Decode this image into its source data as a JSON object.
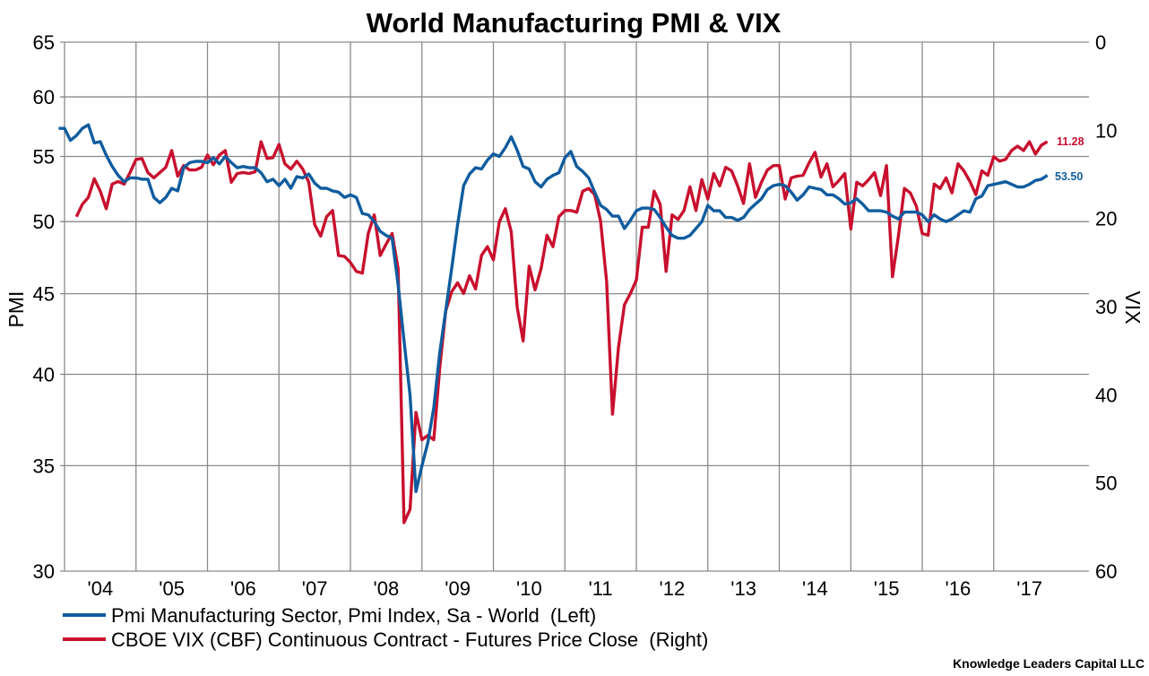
{
  "chart_data": {
    "type": "line",
    "title": "World Manufacturing PMI & VIX",
    "frequency": "monthly",
    "x_tick_labels": [
      "'04",
      "'05",
      "'06",
      "'07",
      "'08",
      "'09",
      "'10",
      "'11",
      "'12",
      "'13",
      "'14",
      "'15",
      "'16",
      "'17"
    ],
    "x_tick_years": [
      2004,
      2005,
      2006,
      2007,
      2008,
      2009,
      2010,
      2011,
      2012,
      2013,
      2014,
      2015,
      2016,
      2017
    ],
    "grid": true,
    "legend_placement": "bottom",
    "left_axis": {
      "label": "PMI",
      "scale": "log",
      "range": [
        30,
        65
      ],
      "ticks": [
        30,
        35,
        40,
        45,
        50,
        55,
        60,
        65
      ]
    },
    "right_axis": {
      "label": "VIX",
      "scale": "linear",
      "inverted": true,
      "range": [
        0,
        60
      ],
      "ticks": [
        0,
        10,
        20,
        30,
        40,
        50,
        60
      ]
    },
    "series": [
      {
        "name": "Pmi Manufacturing Sector, Pmi Index, Sa - World  (Left)",
        "axis": "left",
        "color": "#0f5c9e",
        "start": "2003-12",
        "end_label": "53.50",
        "values": [
          57.3,
          57.3,
          56.3,
          56.7,
          57.3,
          57.6,
          56.1,
          56.2,
          55.1,
          54.2,
          53.5,
          53.0,
          53.3,
          53.3,
          53.2,
          53.2,
          51.8,
          51.4,
          51.8,
          52.5,
          52.3,
          54.1,
          54.5,
          54.6,
          54.6,
          54.5,
          54.9,
          54.4,
          55.0,
          54.5,
          54.1,
          54.2,
          54.1,
          54.1,
          53.7,
          53.0,
          53.2,
          52.7,
          53.2,
          52.5,
          53.4,
          53.3,
          53.6,
          52.9,
          52.5,
          52.5,
          52.3,
          52.2,
          51.8,
          52.0,
          51.8,
          50.6,
          50.5,
          50.0,
          49.3,
          49.0,
          48.8,
          45.6,
          42.0,
          38.8,
          33.7,
          35.0,
          36.2,
          38.1,
          41.3,
          43.9,
          46.7,
          49.8,
          52.7,
          53.6,
          54.1,
          54.0,
          54.7,
          55.2,
          55.0,
          55.7,
          56.6,
          55.5,
          54.2,
          54.0,
          53.0,
          52.6,
          53.2,
          53.5,
          53.7,
          54.9,
          55.4,
          54.2,
          53.8,
          53.3,
          52.2,
          51.2,
          50.9,
          50.4,
          50.4,
          49.5,
          50.1,
          50.8,
          51.0,
          51.0,
          50.9,
          50.3,
          49.6,
          49.0,
          48.8,
          48.8,
          49.0,
          49.5,
          50.0,
          51.2,
          50.8,
          50.8,
          50.3,
          50.3,
          50.1,
          50.3,
          50.9,
          51.3,
          51.7,
          52.4,
          52.7,
          52.8,
          52.7,
          52.2,
          51.6,
          52.0,
          52.6,
          52.5,
          52.4,
          52.0,
          52.0,
          51.7,
          51.3,
          51.4,
          51.7,
          51.3,
          50.8,
          50.8,
          50.8,
          50.7,
          50.4,
          50.2,
          50.7,
          50.7,
          50.7,
          50.5,
          50.0,
          50.5,
          50.2,
          50.0,
          50.2,
          50.5,
          50.8,
          50.7,
          51.7,
          51.9,
          52.7,
          52.8,
          52.9,
          53.0,
          52.8,
          52.6,
          52.6,
          52.8,
          53.1,
          53.2,
          53.5
        ]
      },
      {
        "name": "CBOE VIX (CBF) Continuous Contract - Futures Price Close  (Right)",
        "axis": "right",
        "color": "#c8102e",
        "start": "2004-03",
        "end_label": "11.28",
        "values": [
          19.8,
          18.4,
          17.6,
          15.5,
          16.9,
          18.9,
          16.1,
          15.8,
          16.1,
          14.8,
          13.3,
          13.2,
          14.8,
          15.4,
          14.8,
          14.2,
          12.3,
          15.2,
          14.0,
          14.5,
          14.5,
          14.2,
          12.8,
          13.9,
          12.8,
          12.3,
          15.9,
          14.9,
          14.8,
          14.9,
          14.7,
          11.3,
          13.2,
          13.1,
          11.6,
          13.8,
          14.4,
          13.5,
          14.4,
          15.9,
          20.7,
          22.0,
          19.8,
          19.1,
          24.2,
          24.3,
          25.0,
          26.0,
          26.2,
          21.7,
          19.6,
          24.2,
          22.9,
          21.7,
          25.7,
          54.5,
          53.0,
          42.0,
          45.1,
          44.6,
          45.1,
          36.9,
          30.5,
          28.3,
          27.3,
          28.5,
          26.5,
          28.0,
          24.2,
          23.2,
          24.7,
          20.4,
          18.9,
          21.5,
          30.1,
          33.9,
          25.4,
          28.1,
          25.7,
          21.9,
          23.2,
          19.8,
          19.1,
          19.1,
          19.3,
          16.9,
          16.6,
          17.3,
          20.3,
          27.1,
          42.2,
          34.6,
          29.8,
          28.5,
          27.0,
          21.0,
          21.0,
          16.9,
          18.4,
          26.0,
          19.6,
          20.1,
          19.1,
          16.4,
          19.1,
          15.6,
          17.8,
          14.9,
          16.3,
          14.2,
          14.6,
          16.3,
          18.3,
          13.8,
          17.6,
          15.9,
          14.5,
          14.0,
          14.0,
          17.8,
          15.4,
          15.2,
          15.1,
          13.7,
          12.5,
          15.3,
          13.8,
          16.4,
          15.7,
          14.9,
          21.2,
          15.9,
          16.3,
          15.6,
          14.8,
          17.4,
          14.0,
          26.6,
          22.0,
          16.6,
          17.1,
          18.6,
          21.7,
          21.9,
          16.1,
          16.6,
          15.4,
          17.1,
          13.8,
          14.6,
          15.8,
          17.3,
          14.6,
          15.1,
          13.0,
          13.5,
          13.3,
          12.3,
          11.8,
          12.3,
          11.3,
          12.7,
          11.7,
          11.28
        ]
      }
    ]
  },
  "credit": "Knowledge Leaders Capital LLC"
}
